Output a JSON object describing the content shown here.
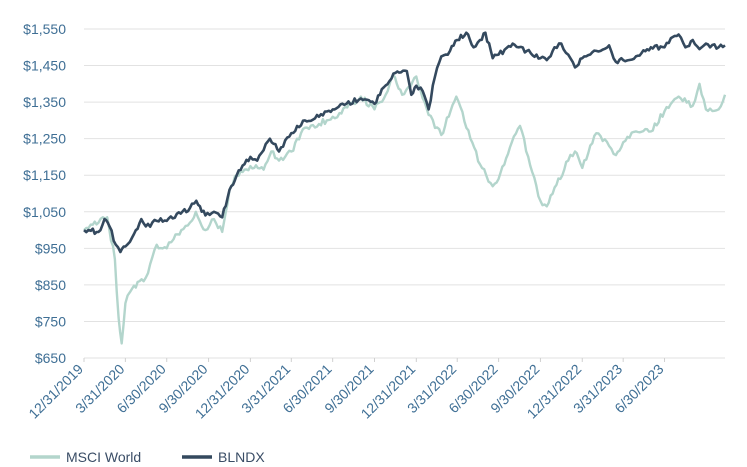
{
  "chart_data": {
    "type": "line",
    "title": "",
    "xlabel": "",
    "ylabel": "",
    "ylim": [
      650,
      1560
    ],
    "y_ticks": [
      "$1,550",
      "$1,450",
      "$1,350",
      "$1,250",
      "$1,150",
      "$1,050",
      "$950",
      "$850",
      "$750",
      "$650"
    ],
    "y_tick_values": [
      1550,
      1450,
      1350,
      1250,
      1150,
      1050,
      950,
      850,
      750,
      650
    ],
    "x_ticks": [
      "12/31/2019",
      "3/31/2020",
      "6/30/2020",
      "9/30/2020",
      "12/31/2020",
      "3/31/2021",
      "6/30/2021",
      "9/30/2021",
      "12/31/2021",
      "3/31/2022",
      "6/30/2022",
      "9/30/2022",
      "12/31/2022",
      "3/31/2023",
      "6/30/2023"
    ],
    "grid": "horizontal",
    "legend_position": "bottom-left",
    "series": [
      {
        "name": "MSCI World",
        "color": "#b3d5cc",
        "points": [
          [
            "2019-12-31",
            1000
          ],
          [
            "2020-01-15",
            1015
          ],
          [
            "2020-02-01",
            1020
          ],
          [
            "2020-02-20",
            1035
          ],
          [
            "2020-03-08",
            920
          ],
          [
            "2020-03-16",
            760
          ],
          [
            "2020-03-23",
            690
          ],
          [
            "2020-03-31",
            800
          ],
          [
            "2020-04-15",
            840
          ],
          [
            "2020-05-01",
            860
          ],
          [
            "2020-05-15",
            870
          ],
          [
            "2020-06-08",
            960
          ],
          [
            "2020-06-30",
            950
          ],
          [
            "2020-07-15",
            975
          ],
          [
            "2020-08-01",
            1000
          ],
          [
            "2020-08-20",
            1020
          ],
          [
            "2020-09-02",
            1050
          ],
          [
            "2020-09-23",
            1000
          ],
          [
            "2020-10-12",
            1030
          ],
          [
            "2020-10-30",
            995
          ],
          [
            "2020-11-15",
            1110
          ],
          [
            "2020-12-01",
            1150
          ],
          [
            "2020-12-31",
            1175
          ],
          [
            "2021-01-29",
            1165
          ],
          [
            "2021-02-15",
            1215
          ],
          [
            "2021-03-04",
            1190
          ],
          [
            "2021-03-31",
            1215
          ],
          [
            "2021-04-30",
            1280
          ],
          [
            "2021-05-31",
            1290
          ],
          [
            "2021-06-30",
            1310
          ],
          [
            "2021-07-15",
            1320
          ],
          [
            "2021-08-31",
            1365
          ],
          [
            "2021-09-30",
            1330
          ],
          [
            "2021-10-29",
            1380
          ],
          [
            "2021-11-10",
            1425
          ],
          [
            "2021-11-30",
            1370
          ],
          [
            "2021-12-31",
            1420
          ],
          [
            "2022-01-27",
            1315
          ],
          [
            "2022-02-24",
            1260
          ],
          [
            "2022-03-29",
            1365
          ],
          [
            "2022-04-29",
            1250
          ],
          [
            "2022-05-20",
            1180
          ],
          [
            "2022-06-17",
            1120
          ],
          [
            "2022-06-30",
            1140
          ],
          [
            "2022-07-29",
            1240
          ],
          [
            "2022-08-16",
            1285
          ],
          [
            "2022-09-30",
            1080
          ],
          [
            "2022-10-14",
            1065
          ],
          [
            "2022-11-30",
            1190
          ],
          [
            "2022-12-15",
            1215
          ],
          [
            "2022-12-31",
            1170
          ],
          [
            "2023-01-31",
            1265
          ],
          [
            "2023-02-28",
            1230
          ],
          [
            "2023-03-15",
            1205
          ],
          [
            "2023-03-31",
            1240
          ],
          [
            "2023-04-28",
            1270
          ],
          [
            "2023-05-31",
            1270
          ],
          [
            "2023-06-30",
            1325
          ],
          [
            "2023-07-31",
            1365
          ],
          [
            "2023-08-31",
            1340
          ],
          [
            "2023-09-15",
            1400
          ],
          [
            "2023-09-29",
            1330
          ],
          [
            "2023-10-27",
            1330
          ],
          [
            "2023-11-10",
            1370
          ]
        ]
      },
      {
        "name": "BLNDX",
        "color": "#34495e",
        "points": [
          [
            "2019-12-31",
            1000
          ],
          [
            "2020-01-15",
            998
          ],
          [
            "2020-02-01",
            995
          ],
          [
            "2020-02-14",
            1030
          ],
          [
            "2020-02-25",
            1010
          ],
          [
            "2020-03-10",
            960
          ],
          [
            "2020-03-20",
            940
          ],
          [
            "2020-03-31",
            955
          ],
          [
            "2020-04-15",
            980
          ],
          [
            "2020-05-05",
            1030
          ],
          [
            "2020-05-15",
            1010
          ],
          [
            "2020-06-08",
            1025
          ],
          [
            "2020-06-30",
            1025
          ],
          [
            "2020-07-31",
            1045
          ],
          [
            "2020-08-20",
            1060
          ],
          [
            "2020-09-03",
            1080
          ],
          [
            "2020-09-23",
            1040
          ],
          [
            "2020-10-12",
            1050
          ],
          [
            "2020-10-30",
            1035
          ],
          [
            "2020-11-15",
            1110
          ],
          [
            "2020-12-01",
            1150
          ],
          [
            "2020-12-31",
            1200
          ],
          [
            "2021-01-15",
            1190
          ],
          [
            "2021-02-12",
            1250
          ],
          [
            "2021-03-04",
            1215
          ],
          [
            "2021-03-31",
            1265
          ],
          [
            "2021-04-30",
            1300
          ],
          [
            "2021-05-31",
            1310
          ],
          [
            "2021-06-30",
            1330
          ],
          [
            "2021-07-30",
            1345
          ],
          [
            "2021-08-31",
            1360
          ],
          [
            "2021-09-30",
            1345
          ],
          [
            "2021-10-20",
            1390
          ],
          [
            "2021-11-15",
            1430
          ],
          [
            "2021-12-10",
            1435
          ],
          [
            "2021-12-20",
            1370
          ],
          [
            "2021-12-31",
            1395
          ],
          [
            "2022-01-14",
            1380
          ],
          [
            "2022-01-27",
            1330
          ],
          [
            "2022-02-10",
            1420
          ],
          [
            "2022-02-24",
            1475
          ],
          [
            "2022-03-15",
            1490
          ],
          [
            "2022-03-31",
            1520
          ],
          [
            "2022-04-20",
            1540
          ],
          [
            "2022-05-06",
            1500
          ],
          [
            "2022-05-20",
            1520
          ],
          [
            "2022-06-01",
            1540
          ],
          [
            "2022-06-17",
            1470
          ],
          [
            "2022-06-30",
            1480
          ],
          [
            "2022-07-31",
            1510
          ],
          [
            "2022-08-31",
            1490
          ],
          [
            "2022-09-30",
            1470
          ],
          [
            "2022-10-14",
            1465
          ],
          [
            "2022-10-31",
            1500
          ],
          [
            "2022-11-15",
            1510
          ],
          [
            "2022-11-30",
            1480
          ],
          [
            "2022-12-15",
            1445
          ],
          [
            "2022-12-31",
            1470
          ],
          [
            "2023-01-31",
            1490
          ],
          [
            "2023-02-28",
            1505
          ],
          [
            "2023-03-15",
            1460
          ],
          [
            "2023-03-31",
            1465
          ],
          [
            "2023-04-28",
            1475
          ],
          [
            "2023-05-31",
            1500
          ],
          [
            "2023-06-30",
            1500
          ],
          [
            "2023-07-14",
            1525
          ],
          [
            "2023-07-31",
            1535
          ],
          [
            "2023-08-15",
            1500
          ],
          [
            "2023-08-31",
            1520
          ],
          [
            "2023-09-15",
            1495
          ],
          [
            "2023-09-29",
            1510
          ],
          [
            "2023-10-27",
            1500
          ],
          [
            "2023-11-10",
            1505
          ]
        ]
      }
    ]
  }
}
